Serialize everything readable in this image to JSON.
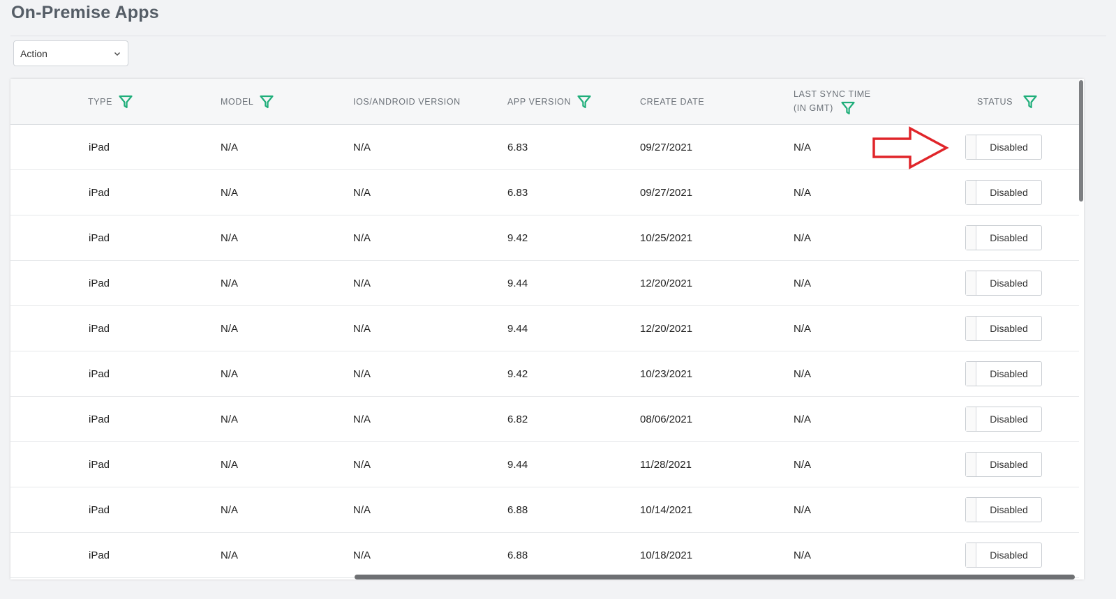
{
  "page": {
    "title": "On-Premise Apps"
  },
  "toolbar": {
    "action_select_value": "Action"
  },
  "table": {
    "columns": {
      "type": "TYPE",
      "model": "MODEL",
      "os_version": "IOS/ANDROID VERSION",
      "app_version": "APP VERSION",
      "create_date": "CREATE DATE",
      "last_sync_line1": "LAST SYNC TIME",
      "last_sync_line2": "(IN GMT)",
      "status": "STATUS"
    },
    "rows": [
      {
        "type": "iPad",
        "model": "N/A",
        "os_version": "N/A",
        "app_version": "6.83",
        "create_date": "09/27/2021",
        "last_sync": "N/A",
        "status": "Disabled"
      },
      {
        "type": "iPad",
        "model": "N/A",
        "os_version": "N/A",
        "app_version": "6.83",
        "create_date": "09/27/2021",
        "last_sync": "N/A",
        "status": "Disabled"
      },
      {
        "type": "iPad",
        "model": "N/A",
        "os_version": "N/A",
        "app_version": "9.42",
        "create_date": "10/25/2021",
        "last_sync": "N/A",
        "status": "Disabled"
      },
      {
        "type": "iPad",
        "model": "N/A",
        "os_version": "N/A",
        "app_version": "9.44",
        "create_date": "12/20/2021",
        "last_sync": "N/A",
        "status": "Disabled"
      },
      {
        "type": "iPad",
        "model": "N/A",
        "os_version": "N/A",
        "app_version": "9.44",
        "create_date": "12/20/2021",
        "last_sync": "N/A",
        "status": "Disabled"
      },
      {
        "type": "iPad",
        "model": "N/A",
        "os_version": "N/A",
        "app_version": "9.42",
        "create_date": "10/23/2021",
        "last_sync": "N/A",
        "status": "Disabled"
      },
      {
        "type": "iPad",
        "model": "N/A",
        "os_version": "N/A",
        "app_version": "6.82",
        "create_date": "08/06/2021",
        "last_sync": "N/A",
        "status": "Disabled"
      },
      {
        "type": "iPad",
        "model": "N/A",
        "os_version": "N/A",
        "app_version": "9.44",
        "create_date": "11/28/2021",
        "last_sync": "N/A",
        "status": "Disabled"
      },
      {
        "type": "iPad",
        "model": "N/A",
        "os_version": "N/A",
        "app_version": "6.88",
        "create_date": "10/14/2021",
        "last_sync": "N/A",
        "status": "Disabled"
      },
      {
        "type": "iPad",
        "model": "N/A",
        "os_version": "N/A",
        "app_version": "6.88",
        "create_date": "10/18/2021",
        "last_sync": "N/A",
        "status": "Disabled"
      }
    ]
  },
  "icons": {
    "filter": "filter-funnel-icon",
    "dropdown": "chevron-down-icon",
    "annotation": "red-arrow-right-icon"
  },
  "colors": {
    "filter_icon": "#1fae7a",
    "annotation_arrow": "#e0252a",
    "title": "#555d66",
    "header_text": "#6b7178"
  }
}
